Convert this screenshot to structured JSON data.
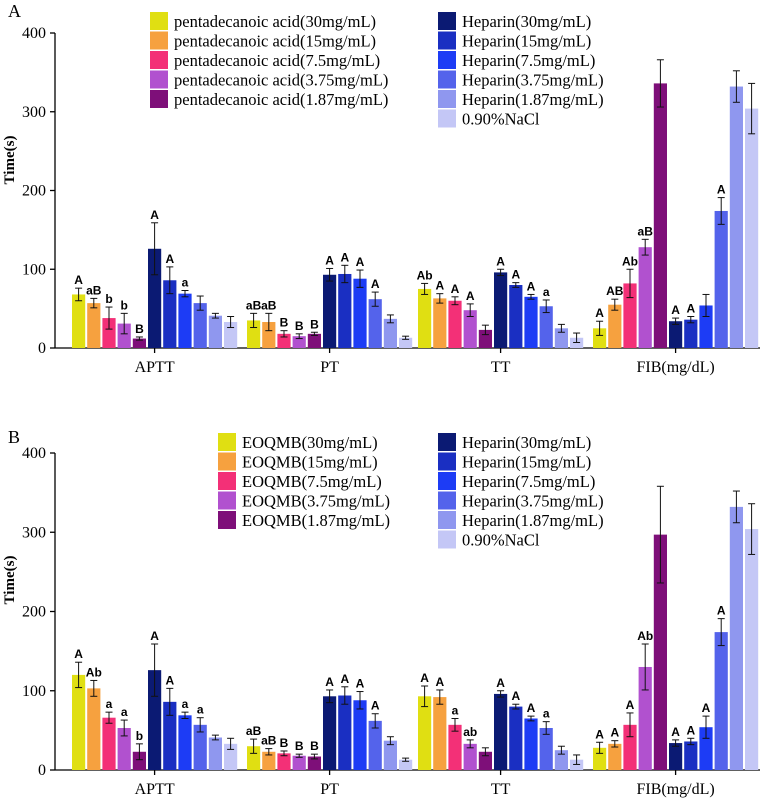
{
  "colors": [
    "#e0df12",
    "#f6a13f",
    "#f33077",
    "#b151cf",
    "#7e0f79",
    "#0b1a73",
    "#1a2fc2",
    "#1d3cf5",
    "#5463eb",
    "#8f97ef",
    "#c4c7f6"
  ],
  "chart_data": [
    {
      "type": "bar",
      "panel_label": "A",
      "title": "",
      "xlabel": "",
      "ylabel": "Time(s)",
      "ylim": [
        0,
        400
      ],
      "yticks": [
        "0",
        "100",
        "200",
        "300",
        "400"
      ],
      "categories": [
        "APTT",
        "PT",
        "TT",
        "FIB(mg/dL)"
      ],
      "legend_left": [
        "pentadecanoic acid(30mg/mL)",
        "pentadecanoic acid(15mg/mL)",
        "pentadecanoic acid(7.5mg/mL)",
        "pentadecanoic acid(3.75mg/mL)",
        "pentadecanoic acid(1.87mg/mL)"
      ],
      "legend_right": [
        "Heparin(30mg/mL)",
        "Heparin(15mg/mL)",
        "Heparin(7.5mg/mL)",
        "Heparin(3.75mg/mL)",
        "Heparin(1.87mg/mL)",
        "0.90%NaCl"
      ],
      "series": [
        {
          "name": "pentadecanoic acid(30mg/mL)",
          "values": [
            68,
            35,
            75,
            25
          ],
          "errors": [
            8,
            9,
            7,
            9
          ],
          "labels": [
            "A",
            "aB",
            "Ab",
            "A"
          ]
        },
        {
          "name": "pentadecanoic acid(15mg/mL)",
          "values": [
            57,
            33,
            63,
            55
          ],
          "errors": [
            6,
            11,
            6,
            7
          ],
          "labels": [
            "aB",
            "aB",
            "A",
            "AB"
          ]
        },
        {
          "name": "pentadecanoic acid(7.5mg/mL)",
          "values": [
            38,
            18,
            60,
            82
          ],
          "errors": [
            14,
            4,
            5,
            18
          ],
          "labels": [
            "b",
            "B",
            "A",
            "Ab"
          ]
        },
        {
          "name": "pentadecanoic acid(3.75mg/mL)",
          "values": [
            31,
            15,
            48,
            128
          ],
          "errors": [
            13,
            3,
            8,
            10
          ],
          "labels": [
            "b",
            "B",
            "A",
            "aB"
          ]
        },
        {
          "name": "pentadecanoic acid(1.87mg/mL)",
          "values": [
            12,
            18,
            23,
            336
          ],
          "errors": [
            2,
            2,
            6,
            30
          ],
          "labels": [
            "B",
            "B",
            "",
            ""
          ]
        },
        {
          "name": "Heparin(30mg/mL)",
          "values": [
            126,
            93,
            96,
            34
          ],
          "errors": [
            33,
            8,
            4,
            4
          ],
          "labels": [
            "A",
            "A",
            "A",
            "A"
          ]
        },
        {
          "name": "Heparin(15mg/mL)",
          "values": [
            86,
            94,
            80,
            36
          ],
          "errors": [
            17,
            11,
            3,
            4
          ],
          "labels": [
            "A",
            "A",
            "A",
            "A"
          ]
        },
        {
          "name": "Heparin(7.5mg/mL)",
          "values": [
            69,
            88,
            65,
            54
          ],
          "errors": [
            4,
            11,
            3,
            14
          ],
          "labels": [
            "a",
            "A",
            "A",
            ""
          ]
        },
        {
          "name": "Heparin(3.75mg/mL)",
          "values": [
            57,
            62,
            53,
            174
          ],
          "errors": [
            9,
            9,
            8,
            17
          ],
          "labels": [
            "",
            "A",
            "a",
            "A"
          ]
        },
        {
          "name": "Heparin(1.87mg/mL)",
          "values": [
            41,
            37,
            25,
            332
          ],
          "errors": [
            3,
            5,
            5,
            20
          ],
          "labels": [
            "",
            "",
            "",
            ""
          ]
        },
        {
          "name": "0.90%NaCl",
          "values": [
            33,
            13,
            13,
            304
          ],
          "errors": [
            7,
            2,
            6,
            32
          ],
          "labels": [
            "",
            "",
            "",
            ""
          ]
        }
      ]
    },
    {
      "type": "bar",
      "panel_label": "B",
      "title": "",
      "xlabel": "",
      "ylabel": "Time(s)",
      "ylim": [
        0,
        400
      ],
      "yticks": [
        "0",
        "100",
        "200",
        "300",
        "400"
      ],
      "categories": [
        "APTT",
        "PT",
        "TT",
        "FIB(mg/dL)"
      ],
      "legend_left": [
        "EOQMB(30mg/mL)",
        "EOQMB(15mg/mL)",
        "EOQMB(7.5mg/mL)",
        "EOQMB(3.75mg/mL)",
        "EOQMB(1.87mg/mL)"
      ],
      "legend_right": [
        "Heparin(30mg/mL)",
        "Heparin(15mg/mL)",
        "Heparin(7.5mg/mL)",
        "Heparin(3.75mg/mL)",
        "Heparin(1.87mg/mL)",
        "0.90%NaCl"
      ],
      "series": [
        {
          "name": "EOQMB(30mg/mL)",
          "values": [
            120,
            30,
            93,
            28
          ],
          "errors": [
            16,
            9,
            13,
            7
          ],
          "labels": [
            "A",
            "aB",
            "A",
            "A"
          ]
        },
        {
          "name": "EOQMB(15mg/mL)",
          "values": [
            103,
            23,
            92,
            33
          ],
          "errors": [
            10,
            4,
            9,
            4
          ],
          "labels": [
            "Ab",
            "aB",
            "A",
            "A"
          ]
        },
        {
          "name": "EOQMB(7.5mg/mL)",
          "values": [
            66,
            21,
            57,
            57
          ],
          "errors": [
            7,
            3,
            8,
            15
          ],
          "labels": [
            "a",
            "B",
            "a",
            "A"
          ]
        },
        {
          "name": "EOQMB(3.75mg/mL)",
          "values": [
            53,
            18,
            33,
            130
          ],
          "errors": [
            10,
            2,
            5,
            29
          ],
          "labels": [
            "a",
            "B",
            "ab",
            "Ab"
          ]
        },
        {
          "name": "EOQMB(1.87mg/mL)",
          "values": [
            23,
            17,
            23,
            297
          ],
          "errors": [
            10,
            3,
            5,
            61
          ],
          "labels": [
            "b",
            "B",
            "",
            ""
          ]
        },
        {
          "name": "Heparin(30mg/mL)",
          "values": [
            126,
            93,
            96,
            34
          ],
          "errors": [
            33,
            8,
            4,
            4
          ],
          "labels": [
            "A",
            "A",
            "A",
            "A"
          ]
        },
        {
          "name": "Heparin(15mg/mL)",
          "values": [
            86,
            94,
            80,
            36
          ],
          "errors": [
            17,
            11,
            3,
            4
          ],
          "labels": [
            "A",
            "A",
            "A",
            "A"
          ]
        },
        {
          "name": "Heparin(7.5mg/mL)",
          "values": [
            69,
            88,
            65,
            54
          ],
          "errors": [
            4,
            11,
            3,
            14
          ],
          "labels": [
            "a",
            "A",
            "A",
            "A"
          ]
        },
        {
          "name": "Heparin(3.75mg/mL)",
          "values": [
            57,
            62,
            53,
            174
          ],
          "errors": [
            9,
            9,
            8,
            17
          ],
          "labels": [
            "a",
            "A",
            "a",
            "A"
          ]
        },
        {
          "name": "Heparin(1.87mg/mL)",
          "values": [
            41,
            37,
            25,
            332
          ],
          "errors": [
            3,
            5,
            5,
            20
          ],
          "labels": [
            "",
            "",
            "",
            ""
          ]
        },
        {
          "name": "0.90%NaCl",
          "values": [
            33,
            13,
            13,
            304
          ],
          "errors": [
            7,
            2,
            6,
            32
          ],
          "labels": [
            "",
            "",
            "",
            ""
          ]
        }
      ]
    }
  ]
}
